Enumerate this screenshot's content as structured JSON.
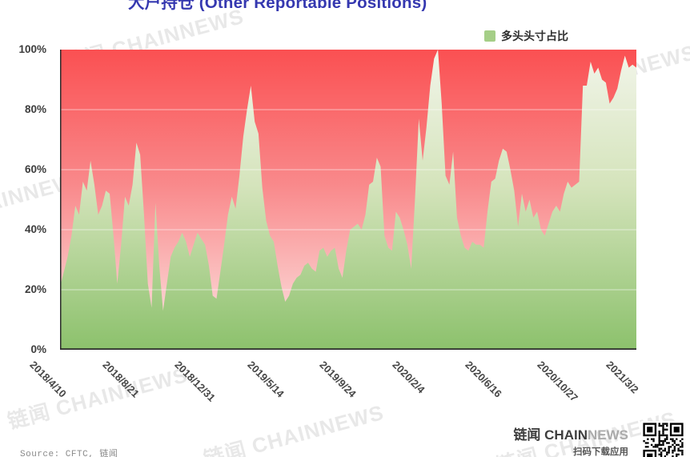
{
  "chart_data": {
    "type": "area",
    "title": "大户持仓 (Other Reportable Positions)",
    "legend": [
      "多头头寸占比"
    ],
    "xlabel": "",
    "ylabel": "",
    "ylim": [
      0,
      100
    ],
    "grid": true,
    "legend_position": "top-right",
    "y_ticks": [
      "0%",
      "20%",
      "40%",
      "60%",
      "80%",
      "100%"
    ],
    "y_tick_values": [
      0,
      20,
      40,
      60,
      80,
      100
    ],
    "x_tick_labels": [
      "2018/4/10",
      "2018/8/21",
      "2018/12/31",
      "2019/5/14",
      "2019/9/24",
      "2020/2/4",
      "2020/6/16",
      "2020/10/27",
      "2021/3/2"
    ],
    "x_tick_weeks": [
      0,
      19,
      38,
      57,
      76,
      95,
      114,
      133,
      151
    ],
    "series": [
      {
        "name": "多头头寸占比",
        "unit": "%",
        "values": [
          21,
          26,
          31,
          38,
          48,
          45,
          56,
          53,
          63,
          55,
          45,
          48,
          53,
          52,
          38,
          22,
          35,
          51,
          48,
          55,
          69,
          65,
          45,
          22,
          14,
          49,
          28,
          13,
          22,
          31,
          34,
          36,
          39,
          36,
          31,
          35,
          39,
          37,
          35,
          28,
          18,
          17,
          26,
          35,
          45,
          51,
          47,
          58,
          71,
          80,
          88,
          76,
          72,
          54,
          43,
          38,
          36,
          28,
          21,
          16,
          18,
          22,
          24,
          25,
          28,
          29,
          27,
          26,
          33,
          34,
          31,
          33,
          34,
          27,
          24,
          33,
          40,
          41,
          42,
          40,
          45,
          55,
          56,
          64,
          61,
          38,
          34,
          33,
          46,
          44,
          40,
          35,
          27,
          50,
          77,
          63,
          74,
          88,
          97,
          100,
          82,
          58,
          55,
          66,
          44,
          38,
          34,
          33,
          36,
          35,
          35,
          34,
          46,
          56,
          57,
          63,
          67,
          66,
          60,
          53,
          41,
          52,
          46,
          50,
          44,
          46,
          40,
          38,
          42,
          46,
          48,
          46,
          52,
          56,
          54,
          55,
          56,
          88,
          88,
          96,
          92,
          94,
          90,
          89,
          82,
          84,
          87,
          93,
          98,
          94,
          95,
          94
        ]
      }
    ],
    "colors": {
      "title": "#3538B0",
      "legend_swatch": "#A5CE87",
      "area_green_top": "#F2F5EA",
      "area_green_mid": "#D5E4BC",
      "area_green_bottom": "#8CC16C",
      "bg_red_top": "#FA5052",
      "bg_red_mid": "#F9898B",
      "bg_red_bottom": "#FCE9E7",
      "axis": "#2b2b2b",
      "grid": "rgba(255,255,255,0.55)"
    }
  },
  "watermark": {
    "text": "链闻 CHAINNEWS"
  },
  "footer": {
    "source": "Source: CFTC, 链闻",
    "brand_dark": "链闻 CHAIN",
    "brand_light": "NEWS",
    "tagline": "扫码下载应用"
  }
}
